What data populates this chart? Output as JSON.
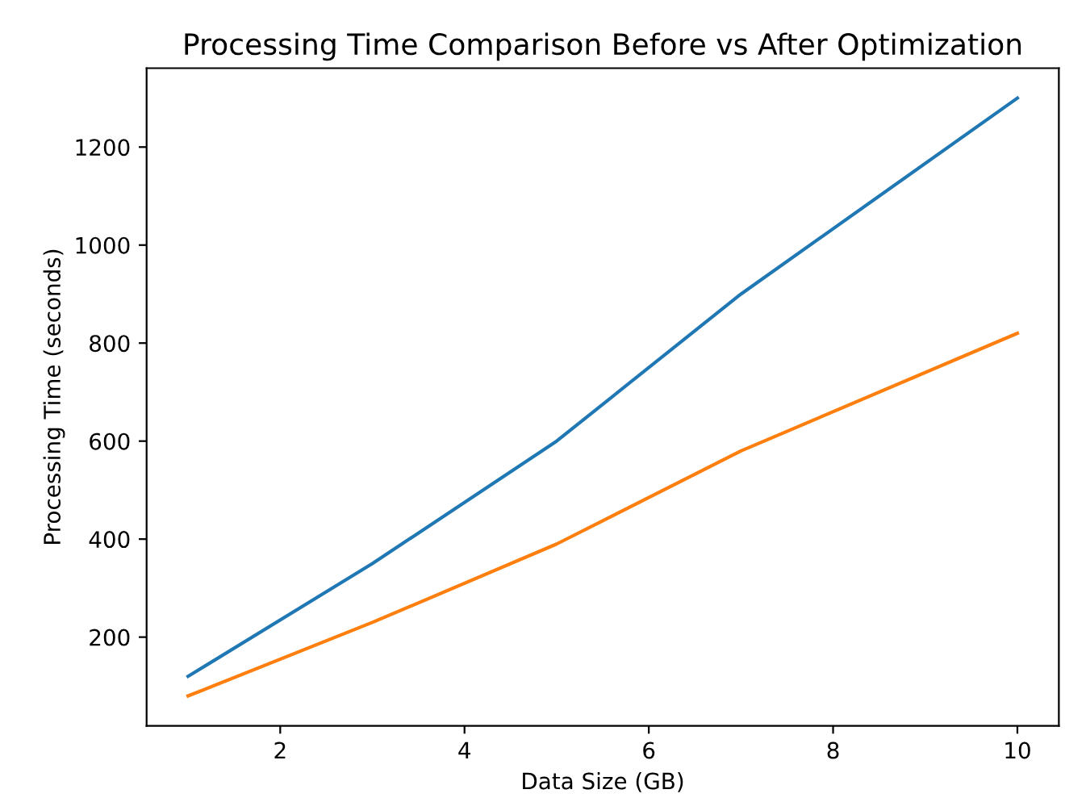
{
  "chart_data": {
    "type": "line",
    "title": "Processing Time Comparison Before vs After Optimization",
    "xlabel": "Data Size (GB)",
    "ylabel": "Processing Time (seconds)",
    "x": [
      1,
      3,
      5,
      7,
      10
    ],
    "series": [
      {
        "color": "#1f77b4",
        "values": [
          120,
          350,
          600,
          900,
          1300
        ]
      },
      {
        "color": "#ff7f0e",
        "values": [
          80,
          230,
          390,
          580,
          820
        ]
      }
    ],
    "xlim": [
      0.55,
      10.45
    ],
    "ylim": [
      19,
      1361
    ],
    "xticks": [
      2,
      4,
      6,
      8,
      10
    ],
    "yticks": [
      200,
      400,
      600,
      800,
      1000,
      1200
    ],
    "grid": false,
    "legend": false
  }
}
